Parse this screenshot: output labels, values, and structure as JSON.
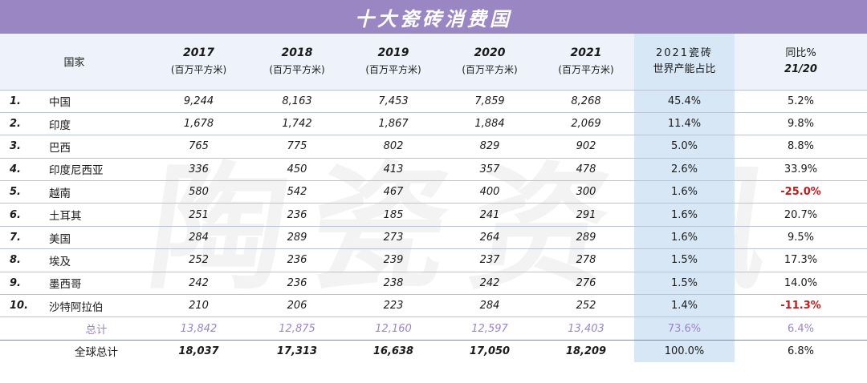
{
  "title": "十大瓷砖消费国",
  "watermark": [
    "陶",
    "瓷",
    "资",
    "讯"
  ],
  "header": {
    "country": "国家",
    "years": [
      {
        "year": "2017",
        "unit": "(百万平方米)"
      },
      {
        "year": "2018",
        "unit": "(百万平方米)"
      },
      {
        "year": "2019",
        "unit": "(百万平方米)"
      },
      {
        "year": "2020",
        "unit": "(百万平方米)"
      },
      {
        "year": "2021",
        "unit": "(百万平方米)"
      }
    ],
    "share_line1": "2021瓷砖",
    "share_line2": "世界产能占比",
    "yoy_line1": "同比%",
    "yoy_line2": "21/20"
  },
  "rows": [
    {
      "rank": "1.",
      "country": "中国",
      "v": [
        "9,244",
        "8,163",
        "7,453",
        "7,859",
        "8,268"
      ],
      "share": "45.4%",
      "yoy": "5.2%"
    },
    {
      "rank": "2.",
      "country": "印度",
      "v": [
        "1,678",
        "1,742",
        "1,867",
        "1,884",
        "2,069"
      ],
      "share": "11.4%",
      "yoy": "9.8%"
    },
    {
      "rank": "3.",
      "country": "巴西",
      "v": [
        "765",
        "775",
        "802",
        "829",
        "902"
      ],
      "share": "5.0%",
      "yoy": "8.8%"
    },
    {
      "rank": "4.",
      "country": "印度尼西亚",
      "v": [
        "336",
        "450",
        "413",
        "357",
        "478"
      ],
      "share": "2.6%",
      "yoy": "33.9%"
    },
    {
      "rank": "5.",
      "country": "越南",
      "v": [
        "580",
        "542",
        "467",
        "400",
        "300"
      ],
      "share": "1.6%",
      "yoy": "-25.0%"
    },
    {
      "rank": "6.",
      "country": "土耳其",
      "v": [
        "251",
        "236",
        "185",
        "241",
        "291"
      ],
      "share": "1.6%",
      "yoy": "20.7%"
    },
    {
      "rank": "7.",
      "country": "美国",
      "v": [
        "284",
        "289",
        "273",
        "264",
        "289"
      ],
      "share": "1.6%",
      "yoy": "9.5%"
    },
    {
      "rank": "8.",
      "country": "埃及",
      "v": [
        "252",
        "236",
        "239",
        "237",
        "278"
      ],
      "share": "1.5%",
      "yoy": "17.3%"
    },
    {
      "rank": "9.",
      "country": "墨西哥",
      "v": [
        "242",
        "236",
        "238",
        "242",
        "276"
      ],
      "share": "1.5%",
      "yoy": "14.0%"
    },
    {
      "rank": "10.",
      "country": "沙特阿拉伯",
      "v": [
        "210",
        "206",
        "223",
        "284",
        "252"
      ],
      "share": "1.4%",
      "yoy": "-11.3%"
    }
  ],
  "subtotal": {
    "label": "总计",
    "v": [
      "13,842",
      "12,875",
      "12,160",
      "12,597",
      "13,403"
    ],
    "share": "73.6%",
    "yoy": "6.4%"
  },
  "total": {
    "label": "全球总计",
    "v": [
      "18,037",
      "17,313",
      "16,638",
      "17,050",
      "18,209"
    ],
    "share": "100.0%",
    "yoy": "6.8%"
  },
  "colors": {
    "title_bar": "#9a86c2",
    "header_bg": "#eef3fb",
    "share_col": "#d8e7f6",
    "negative": "#c01a1a",
    "subtotal_text": "#9a86c2"
  }
}
